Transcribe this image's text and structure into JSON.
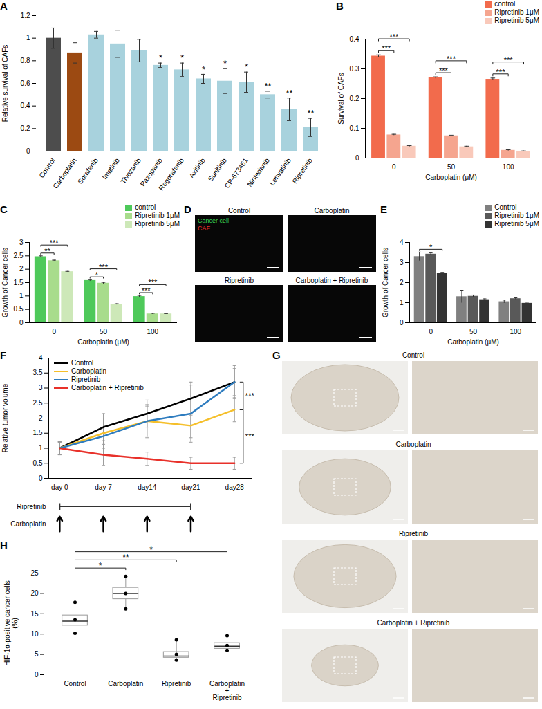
{
  "chart_data": [
    {
      "panel": "A",
      "type": "bar",
      "y_label": "Relative survival of CAFs",
      "categories": [
        "Control",
        "Carboplatin",
        "Sorafenib",
        "Imatinib",
        "Tivozanib",
        "Pazopanib",
        "Regorafenib",
        "Axitinib",
        "Sunitinib",
        "CP-673451",
        "Nintedanib",
        "Lenvatinib",
        "Ripretinib"
      ],
      "values": [
        1.0,
        0.87,
        1.03,
        0.95,
        0.89,
        0.76,
        0.72,
        0.64,
        0.62,
        0.61,
        0.5,
        0.37,
        0.21
      ],
      "errors": [
        0.09,
        0.09,
        0.03,
        0.12,
        0.1,
        0.02,
        0.06,
        0.04,
        0.11,
        0.09,
        0.03,
        0.1,
        0.08
      ],
      "significance": [
        null,
        null,
        null,
        null,
        null,
        "*",
        "*",
        "*",
        "*",
        "*",
        "**",
        "**",
        "**"
      ],
      "colors": [
        "#4d4d4d",
        "#9c4a12",
        "#a8d2dd",
        "#a8d2dd",
        "#a8d2dd",
        "#a8d2dd",
        "#a8d2dd",
        "#a8d2dd",
        "#a8d2dd",
        "#a8d2dd",
        "#a8d2dd",
        "#a8d2dd",
        "#a8d2dd"
      ],
      "ylim": [
        0,
        1.2
      ],
      "yticks": [
        0,
        0.2,
        0.4,
        0.6,
        0.8,
        1,
        1.2
      ]
    },
    {
      "panel": "B",
      "type": "bar",
      "x_label": "Carboplatin (μM)",
      "y_label": "Survival of CAFs",
      "categories": [
        "0",
        "50",
        "100"
      ],
      "legend": "top-right",
      "series": [
        {
          "name": "control",
          "color": "#f26b4c",
          "values": [
            0.343,
            0.27,
            0.265
          ],
          "errors": [
            0.004,
            0.003,
            0.004
          ]
        },
        {
          "name": "Ripretinib 1μM",
          "color": "#f5a58f",
          "values": [
            0.078,
            0.075,
            0.026
          ],
          "errors": [
            0.002,
            0.002,
            0.002
          ]
        },
        {
          "name": "Ripretinib 5μM",
          "color": "#f9c9ba",
          "values": [
            0.04,
            0.038,
            0.023
          ],
          "errors": [
            0.002,
            0.002,
            0.001
          ]
        }
      ],
      "significance": [
        {
          "category": "0",
          "from": "control",
          "to": "Ripretinib 1μM",
          "label": "***"
        },
        {
          "category": "0",
          "from": "control",
          "to": "Ripretinib 5μM",
          "label": "***"
        },
        {
          "category": "50",
          "from": "control",
          "to": "Ripretinib 1μM",
          "label": "***"
        },
        {
          "category": "50",
          "from": "control",
          "to": "Ripretinib 5μM",
          "label": "***"
        },
        {
          "category": "100",
          "from": "control",
          "to": "Ripretinib 1μM",
          "label": "***"
        },
        {
          "category": "100",
          "from": "control",
          "to": "Ripretinib 5μM",
          "label": "***"
        }
      ],
      "ylim": [
        0,
        0.4
      ],
      "yticks": [
        0,
        0.1,
        0.2,
        0.3,
        0.4
      ]
    },
    {
      "panel": "C",
      "type": "bar",
      "x_label": "Carboplatin (μM)",
      "y_label": "Growth of Cancer cells",
      "categories": [
        "0",
        "50",
        "100"
      ],
      "legend": "top-right",
      "series": [
        {
          "name": "control",
          "color": "#4ec95a",
          "values": [
            2.47,
            1.58,
            0.98
          ],
          "errors": [
            0.03,
            0.03,
            0.04
          ]
        },
        {
          "name": "Ripretinib 1μM",
          "color": "#a8dc8c",
          "values": [
            2.32,
            1.48,
            0.33
          ],
          "errors": [
            0.02,
            0.03,
            0.02
          ]
        },
        {
          "name": "Ripretinib 5μM",
          "color": "#cde8b8",
          "values": [
            1.91,
            0.69,
            0.33
          ],
          "errors": [
            0.01,
            0.02,
            0.01
          ]
        }
      ],
      "significance": [
        {
          "category": "0",
          "from": "control",
          "to": "Ripretinib 1μM",
          "label": "**"
        },
        {
          "category": "0",
          "from": "control",
          "to": "Ripretinib 5μM",
          "label": "***"
        },
        {
          "category": "50",
          "from": "control",
          "to": "Ripretinib 1μM",
          "label": "*"
        },
        {
          "category": "50",
          "from": "control",
          "to": "Ripretinib 5μM",
          "label": "***"
        },
        {
          "category": "100",
          "from": "control",
          "to": "Ripretinib 1μM",
          "label": "***"
        },
        {
          "category": "100",
          "from": "control",
          "to": "Ripretinib 5μM",
          "label": "***"
        }
      ],
      "ylim": [
        0,
        3
      ],
      "yticks": [
        0,
        0.5,
        1,
        1.5,
        2,
        2.5,
        3
      ]
    },
    {
      "panel": "E",
      "type": "bar",
      "x_label": "Carboplatin (μM)",
      "y_label": "Growth of Cancer cells",
      "categories": [
        "0",
        "50",
        "100"
      ],
      "legend": "top-right",
      "series": [
        {
          "name": "Control",
          "color": "#808080",
          "values": [
            3.3,
            1.3,
            1.05
          ],
          "errors": [
            0.22,
            0.32,
            0.08
          ]
        },
        {
          "name": "Ripretinib 1μM",
          "color": "#595959",
          "values": [
            3.42,
            1.32,
            1.2
          ],
          "errors": [
            0.06,
            0.06,
            0.04
          ]
        },
        {
          "name": "Ripretinib 5μM",
          "color": "#333333",
          "values": [
            2.45,
            1.15,
            0.97
          ],
          "errors": [
            0.06,
            0.04,
            0.05
          ]
        }
      ],
      "significance": [
        {
          "category": "0",
          "from": "Control",
          "to": "Ripretinib 5μM",
          "label": "*"
        }
      ],
      "ylim": [
        0,
        4
      ],
      "yticks": [
        0,
        1,
        2,
        3,
        4
      ]
    },
    {
      "panel": "F",
      "type": "line",
      "y_label": "Relative tumor volume",
      "categories": [
        "day 0",
        "day 7",
        "day14",
        "day21",
        "day28"
      ],
      "legend": "top-left",
      "series": [
        {
          "name": "Control",
          "color": "#000000",
          "values": [
            1,
            1.7,
            2.15,
            2.65,
            3.2
          ],
          "errors": [
            0.22,
            0.45,
            0.45,
            0.55,
            0.55
          ]
        },
        {
          "name": "Carboplatin",
          "color": "#f5bf2a",
          "values": [
            1,
            1.5,
            1.9,
            1.75,
            2.28
          ],
          "errors": [
            0.2,
            0.5,
            0.5,
            0.4,
            0.4
          ]
        },
        {
          "name": "Ripretinib",
          "color": "#2e7cbf",
          "values": [
            1,
            1.4,
            1.9,
            2.15,
            3.2
          ],
          "errors": [
            0.22,
            0.6,
            0.55,
            0.95,
            0.45
          ]
        },
        {
          "name": "Carboplatin + Ripretinib",
          "color": "#e8312a",
          "values": [
            1,
            0.78,
            0.65,
            0.5,
            0.5
          ],
          "errors": [
            0.2,
            0.35,
            0.22,
            0.2,
            0.2
          ]
        }
      ],
      "significance": [
        {
          "from": "Control",
          "to": "Carboplatin",
          "label": "***"
        },
        {
          "from": "Carboplatin",
          "to": "Carboplatin + Ripretinib",
          "label": "***"
        }
      ],
      "schedule": [
        {
          "name": "Ripretinib",
          "start": "day 0",
          "end": "day21"
        },
        {
          "name": "Carboplatin",
          "doses": [
            "day 0",
            "day 7",
            "day14",
            "day21"
          ]
        }
      ],
      "ylim": [
        0,
        4
      ],
      "yticks": [
        0,
        0.5,
        1,
        1.5,
        2,
        2.5,
        3,
        3.5,
        4
      ]
    },
    {
      "panel": "H",
      "type": "box",
      "y_label": "HIF-1α-positive cancer cells\n(%)",
      "categories": [
        "Control",
        "Carboplatin",
        "Ripretinib",
        "Carboplatin\n+\nRipretinib"
      ],
      "boxes": [
        {
          "min": 10.2,
          "q1": 12.1,
          "median": 13.2,
          "q3": 14.6,
          "max": 17.8,
          "points": [
            10.2,
            13.5,
            17.8
          ]
        },
        {
          "min": 16.2,
          "q1": 18.6,
          "median": 20.0,
          "q3": 21.4,
          "max": 24.2,
          "points": [
            16.2,
            20.0,
            24.2
          ]
        },
        {
          "min": 3.6,
          "q1": 4.2,
          "median": 4.6,
          "q3": 5.6,
          "max": 8.6,
          "points": [
            3.6,
            5.0,
            8.6
          ]
        },
        {
          "min": 6.0,
          "q1": 6.4,
          "median": 7.0,
          "q3": 7.8,
          "max": 9.6,
          "points": [
            6.0,
            7.2,
            9.6
          ]
        }
      ],
      "significance": [
        {
          "from": "Control",
          "to": "Carboplatin",
          "label": "*"
        },
        {
          "from": "Control",
          "to": "Ripretinib",
          "label": "**"
        },
        {
          "from": "Control",
          "to": "Carboplatin\n+\nRipretinib",
          "label": "*"
        }
      ],
      "ylim": [
        0,
        25
      ],
      "yticks": [
        0,
        5,
        10,
        15,
        20,
        25
      ]
    }
  ],
  "image_panels": [
    {
      "panel": "D",
      "images": [
        {
          "title": "Control"
        },
        {
          "title": "Carboplatin"
        },
        {
          "title": "Ripretinib"
        },
        {
          "title": "Carboplatin + Ripretinib"
        }
      ],
      "legend": [
        {
          "name": "Cancer cell",
          "color": "#39d353"
        },
        {
          "name": "CAF",
          "color": "#e8312a"
        }
      ]
    },
    {
      "panel": "G",
      "images": [
        {
          "title": "Control"
        },
        {
          "title": "Carboplatin"
        },
        {
          "title": "Ripretinib"
        },
        {
          "title": "Carboplatin + Ripretinib"
        }
      ]
    }
  ]
}
